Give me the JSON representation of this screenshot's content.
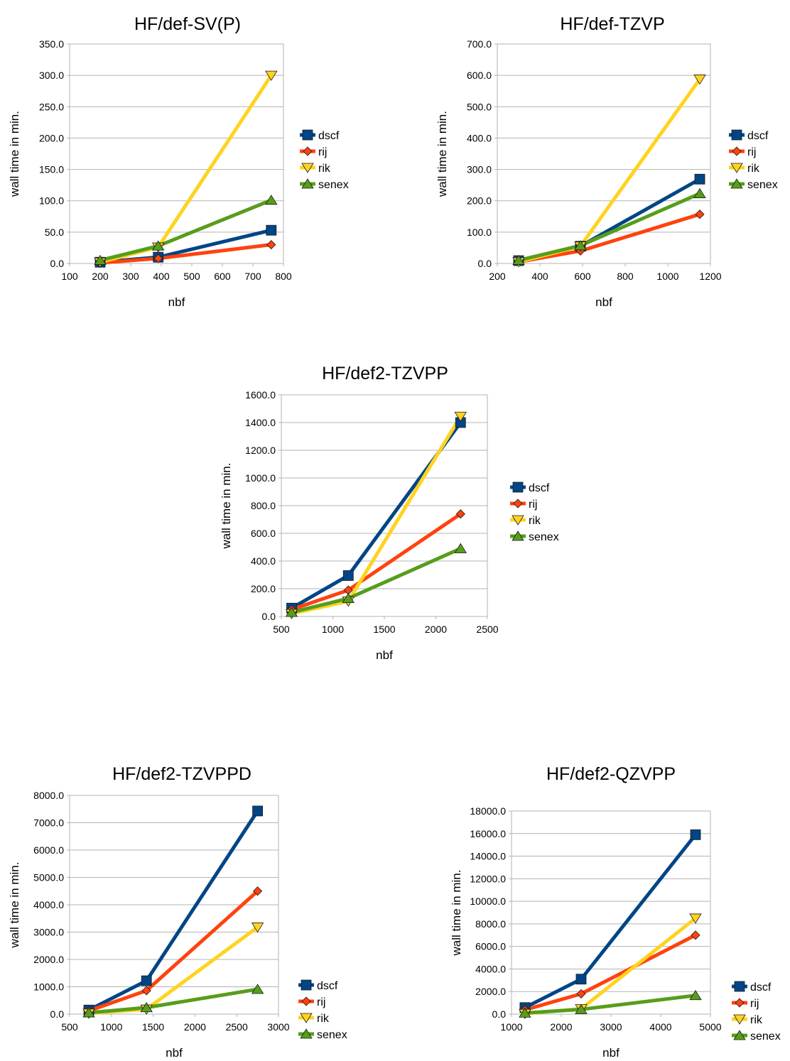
{
  "series_styles": [
    {
      "name": "dscf",
      "color": "#004586",
      "marker": "square"
    },
    {
      "name": "rij",
      "color": "#ff420e",
      "marker": "diamond"
    },
    {
      "name": "rik",
      "color": "#ffd320",
      "marker": "triangle-down"
    },
    {
      "name": "senex",
      "color": "#579d1c",
      "marker": "triangle-up"
    }
  ],
  "chart_data": [
    {
      "type": "line",
      "title": "HF/def-SV(P)",
      "xlabel": "nbf",
      "ylabel": "wall time in min.",
      "xlim": [
        100,
        800
      ],
      "xticks": [
        100,
        200,
        300,
        400,
        500,
        600,
        700,
        800
      ],
      "ylim": [
        0,
        350
      ],
      "yticks": [
        "0.0",
        "50.0",
        "100.0",
        "150.0",
        "200.0",
        "250.0",
        "300.0",
        "350.0"
      ],
      "legend": "right",
      "x": [
        200,
        390,
        760
      ],
      "series": [
        {
          "name": "dscf",
          "values": [
            2,
            10,
            53
          ]
        },
        {
          "name": "rij",
          "values": [
            1,
            8,
            30
          ]
        },
        {
          "name": "rik",
          "values": [
            2,
            26,
            300
          ]
        },
        {
          "name": "senex",
          "values": [
            5,
            28,
            101
          ]
        }
      ]
    },
    {
      "type": "line",
      "title": "HF/def-TZVP",
      "xlabel": "nbf",
      "ylabel": "wall time in min.",
      "xlim": [
        200,
        1200
      ],
      "xticks": [
        200,
        400,
        600,
        800,
        1000,
        1200
      ],
      "ylim": [
        0,
        700
      ],
      "yticks": [
        "0.0",
        "100.0",
        "200.0",
        "300.0",
        "400.0",
        "500.0",
        "600.0",
        "700.0"
      ],
      "legend": "right",
      "x": [
        300,
        590,
        1150
      ],
      "series": [
        {
          "name": "dscf",
          "values": [
            9,
            55,
            269
          ]
        },
        {
          "name": "rij",
          "values": [
            5,
            40,
            157
          ]
        },
        {
          "name": "rik",
          "values": [
            5,
            55,
            588
          ]
        },
        {
          "name": "senex",
          "values": [
            10,
            57,
            223
          ]
        }
      ]
    },
    {
      "type": "line",
      "title": "HF/def2-TZVPP",
      "xlabel": "nbf",
      "ylabel": "wall time in min.",
      "xlim": [
        500,
        2500
      ],
      "xticks": [
        500,
        1000,
        1500,
        2000,
        2500
      ],
      "ylim": [
        0,
        1600
      ],
      "yticks": [
        "0.0",
        "200.0",
        "400.0",
        "600.0",
        "800.0",
        "1000.0",
        "1200.0",
        "1400.0",
        "1600.0"
      ],
      "legend": "right",
      "x": [
        600,
        1150,
        2240
      ],
      "series": [
        {
          "name": "dscf",
          "values": [
            60,
            295,
            1400
          ]
        },
        {
          "name": "rij",
          "values": [
            50,
            190,
            740
          ]
        },
        {
          "name": "rik",
          "values": [
            20,
            110,
            1445
          ]
        },
        {
          "name": "senex",
          "values": [
            30,
            130,
            490
          ]
        }
      ]
    },
    {
      "type": "line",
      "title": "HF/def2-TZVPPD",
      "xlabel": "nbf",
      "ylabel": "wall time in min.",
      "xlim": [
        500,
        3000
      ],
      "xticks": [
        500,
        1000,
        1500,
        2000,
        2500,
        3000
      ],
      "ylim": [
        0,
        8000
      ],
      "yticks": [
        "0.0",
        "1000.0",
        "2000.0",
        "3000.0",
        "4000.0",
        "5000.0",
        "6000.0",
        "7000.0",
        "8000.0"
      ],
      "legend": "right",
      "x": [
        730,
        1420,
        2750
      ],
      "series": [
        {
          "name": "dscf",
          "values": [
            150,
            1220,
            7430
          ]
        },
        {
          "name": "rij",
          "values": [
            120,
            860,
            4500
          ]
        },
        {
          "name": "rik",
          "values": [
            30,
            180,
            3180
          ]
        },
        {
          "name": "senex",
          "values": [
            50,
            240,
            910
          ]
        }
      ]
    },
    {
      "type": "line",
      "title": "HF/def2-QZVPP",
      "xlabel": "nbf",
      "ylabel": "wall time in min.",
      "xlim": [
        1000,
        5000
      ],
      "xticks": [
        1000,
        2000,
        3000,
        4000,
        5000
      ],
      "ylim": [
        0,
        18000
      ],
      "yticks": [
        "0.0",
        "2000.0",
        "4000.0",
        "6000.0",
        "8000.0",
        "10000.0",
        "12000.0",
        "14000.0",
        "16000.0",
        "18000.0"
      ],
      "legend": "right",
      "x": [
        1270,
        2400,
        4700
      ],
      "series": [
        {
          "name": "dscf",
          "values": [
            580,
            3100,
            15900
          ]
        },
        {
          "name": "rij",
          "values": [
            380,
            1800,
            7000
          ]
        },
        {
          "name": "rik",
          "values": [
            50,
            470,
            8500
          ]
        },
        {
          "name": "senex",
          "values": [
            100,
            420,
            1650
          ]
        }
      ]
    }
  ]
}
